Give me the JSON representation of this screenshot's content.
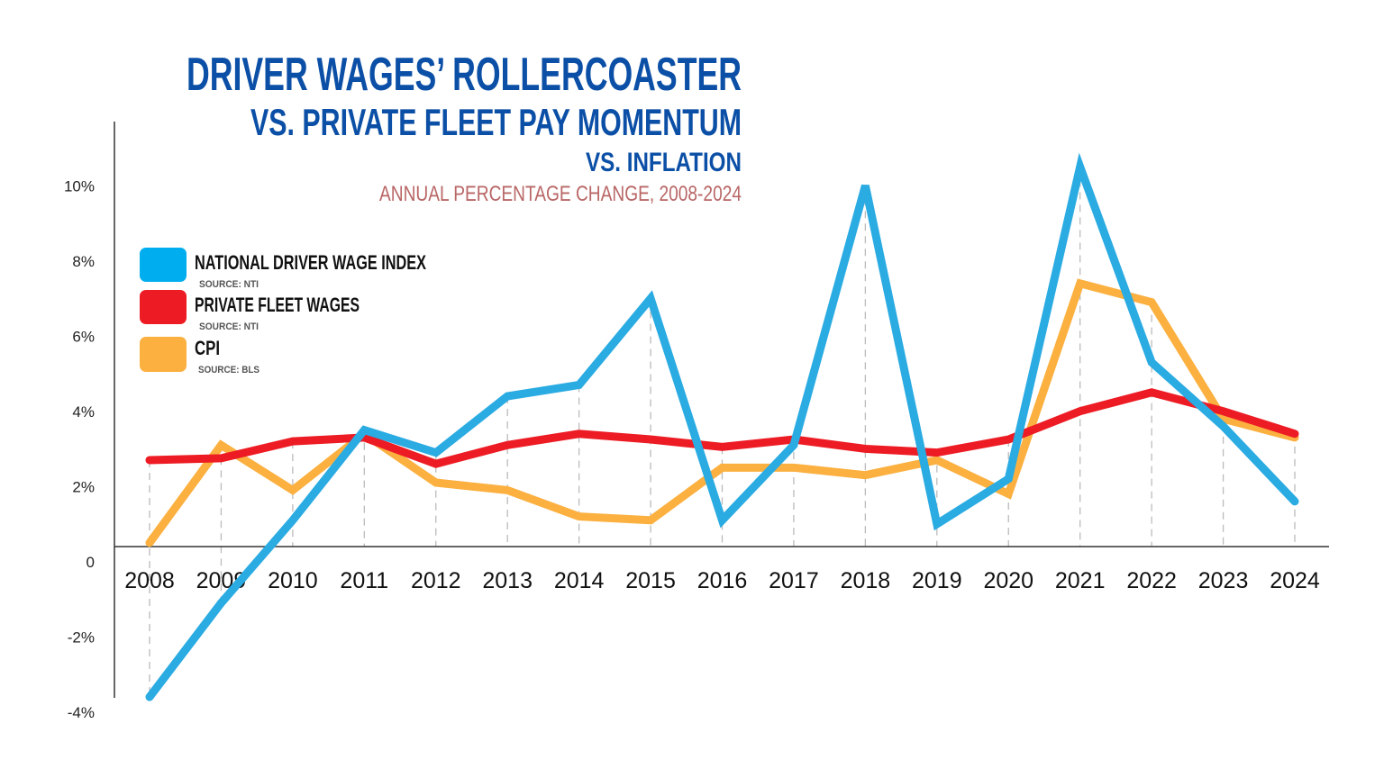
{
  "chart_data": {
    "type": "line",
    "title": "DRIVER WAGES’ ROLLERCOASTER",
    "subtitle_lines": [
      "VS. PRIVATE FLEET PAY MOMENTUM",
      "VS. INFLATION"
    ],
    "caption": "ANNUAL PERCENTAGE CHANGE, 2008-2024",
    "xlabel": "",
    "ylabel": "",
    "categories": [
      "2008",
      "2009",
      "2010",
      "2011",
      "2012",
      "2013",
      "2014",
      "2015",
      "2016",
      "2017",
      "2018",
      "2019",
      "2020",
      "2021",
      "2022",
      "2023",
      "2024"
    ],
    "y_ticks": [
      "10%",
      "8%",
      "6%",
      "4%",
      "2%",
      "0",
      "-2%",
      "-4%"
    ],
    "ylim": [
      -4,
      10
    ],
    "grid": "dashed vertical drop lines per year",
    "legend_placement": "left",
    "series": [
      {
        "name": "NATIONAL DRIVER WAGE INDEX",
        "source": "SOURCE: NTI",
        "color": "#2aabe2",
        "values": [
          -4.0,
          -1.5,
          0.7,
          3.1,
          2.5,
          4.0,
          4.3,
          6.6,
          0.7,
          2.7,
          9.6,
          0.6,
          1.8,
          10.1,
          4.9,
          3.2,
          1.2
        ]
      },
      {
        "name": "PRIVATE FLEET WAGES",
        "source": "SOURCE: NTI",
        "color": "#ed1c24",
        "values": [
          2.3,
          2.35,
          2.8,
          2.9,
          2.2,
          2.7,
          3.0,
          2.85,
          2.65,
          2.85,
          2.6,
          2.5,
          2.85,
          3.6,
          4.1,
          3.6,
          3.0
        ]
      },
      {
        "name": "CPI",
        "source": "SOURCE: BLS",
        "color": "#fbb040",
        "values": [
          0.1,
          2.7,
          1.5,
          3.0,
          1.7,
          1.5,
          0.8,
          0.7,
          2.1,
          2.1,
          1.9,
          2.3,
          1.4,
          7.0,
          6.5,
          3.4,
          2.9
        ]
      }
    ]
  }
}
